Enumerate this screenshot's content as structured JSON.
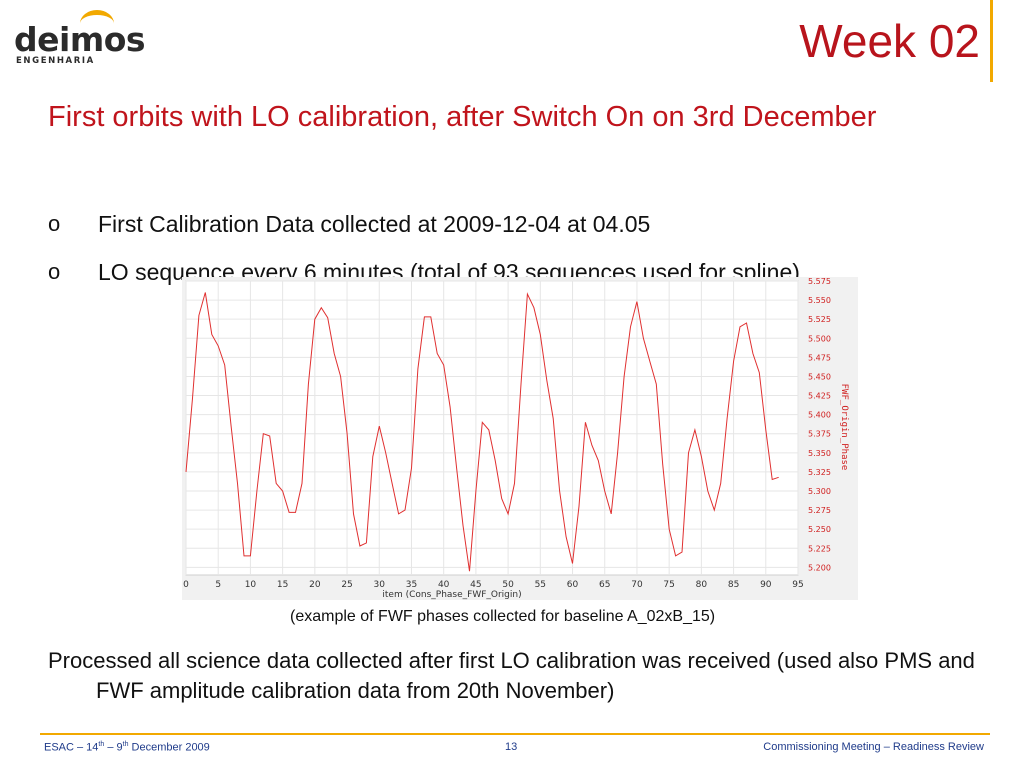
{
  "logo": {
    "name": "deimos",
    "sub": "ENGENHARIA"
  },
  "title": "Week 02",
  "headline": "First orbits with LO calibration, after Switch On on 3rd December",
  "bullets": [
    "First Calibration Data collected at 2009-12-04 at 04.05",
    "LO sequence every 6 minutes (total of 93 sequences used for spline)"
  ],
  "bullet_marker": "o",
  "caption": "(example of FWF phases collected  for baseline A_02xB_15)",
  "paragraph": "Processed all science data collected after first LO calibration was received (used also PMS and FWF amplitude calibration data from 20th November)",
  "footer": {
    "left": {
      "prefix": "ESAC – 14",
      "sup1": "th",
      "mid": " – 9",
      "sup2": "th",
      "suffix": " December 2009"
    },
    "page": "13",
    "right": "Commissioning Meeting – Readiness Review"
  },
  "colors": {
    "title_red": "#b8141c",
    "accent_gold": "#f2a900",
    "footer_blue": "#1f3b8a",
    "series": "#e03030"
  },
  "chart_data": {
    "type": "line",
    "xlabel": "item (Cons_Phase_FWF_Origin)",
    "ylabel": "FWF_Origin_Phase",
    "xlim": [
      0,
      95
    ],
    "ylim": [
      5.19,
      5.575
    ],
    "xticks": [
      0,
      5,
      10,
      15,
      20,
      25,
      30,
      35,
      40,
      45,
      50,
      55,
      60,
      65,
      70,
      75,
      80,
      85,
      90,
      95
    ],
    "yticks": [
      5.2,
      5.225,
      5.25,
      5.275,
      5.3,
      5.325,
      5.35,
      5.375,
      5.4,
      5.425,
      5.45,
      5.475,
      5.5,
      5.525,
      5.55,
      5.575
    ],
    "ytick_labels": [
      "5.200",
      "5.225",
      "5.250",
      "5.275",
      "5.300",
      "5.325",
      "5.350",
      "5.375",
      "5.400",
      "5.425",
      "5.450",
      "5.475",
      "5.500",
      "5.525",
      "5.550",
      "5.575"
    ],
    "y_axis_position": "right",
    "grid": true,
    "series": [
      {
        "x": [
          0,
          1,
          2,
          3,
          4,
          5,
          6,
          7,
          8,
          9,
          10,
          11,
          12,
          13,
          14,
          15,
          16,
          17,
          18,
          19,
          20,
          21,
          22,
          23,
          24,
          25,
          26,
          27,
          28,
          29,
          30,
          31,
          32,
          33,
          34,
          35,
          36,
          37,
          38,
          39,
          40,
          41,
          42,
          43,
          44,
          45,
          46,
          47,
          48,
          49,
          50,
          51,
          52,
          53,
          54,
          55,
          56,
          57,
          58,
          59,
          60,
          61,
          62,
          63,
          64,
          65,
          66,
          67,
          68,
          69,
          70,
          71,
          72,
          73,
          74,
          75,
          76,
          77,
          78,
          79,
          80,
          81,
          82,
          83,
          84,
          85,
          86,
          87,
          88,
          89,
          90,
          91,
          92
        ],
        "y": [
          5.325,
          5.42,
          5.53,
          5.56,
          5.505,
          5.49,
          5.465,
          5.385,
          5.31,
          5.215,
          5.215,
          5.3,
          5.375,
          5.372,
          5.31,
          5.3,
          5.272,
          5.272,
          5.31,
          5.44,
          5.525,
          5.54,
          5.527,
          5.48,
          5.45,
          5.375,
          5.27,
          5.228,
          5.232,
          5.345,
          5.385,
          5.35,
          5.31,
          5.27,
          5.275,
          5.33,
          5.46,
          5.528,
          5.528,
          5.48,
          5.465,
          5.41,
          5.33,
          5.255,
          5.195,
          5.3,
          5.39,
          5.38,
          5.34,
          5.29,
          5.27,
          5.31,
          5.44,
          5.558,
          5.54,
          5.505,
          5.445,
          5.395,
          5.3,
          5.24,
          5.205,
          5.28,
          5.39,
          5.36,
          5.34,
          5.3,
          5.27,
          5.35,
          5.45,
          5.515,
          5.548,
          5.5,
          5.47,
          5.44,
          5.335,
          5.25,
          5.215,
          5.22,
          5.35,
          5.38,
          5.345,
          5.3,
          5.275,
          5.31,
          5.395,
          5.47,
          5.515,
          5.52,
          5.48,
          5.455,
          5.38,
          5.315,
          5.318
        ]
      }
    ]
  }
}
